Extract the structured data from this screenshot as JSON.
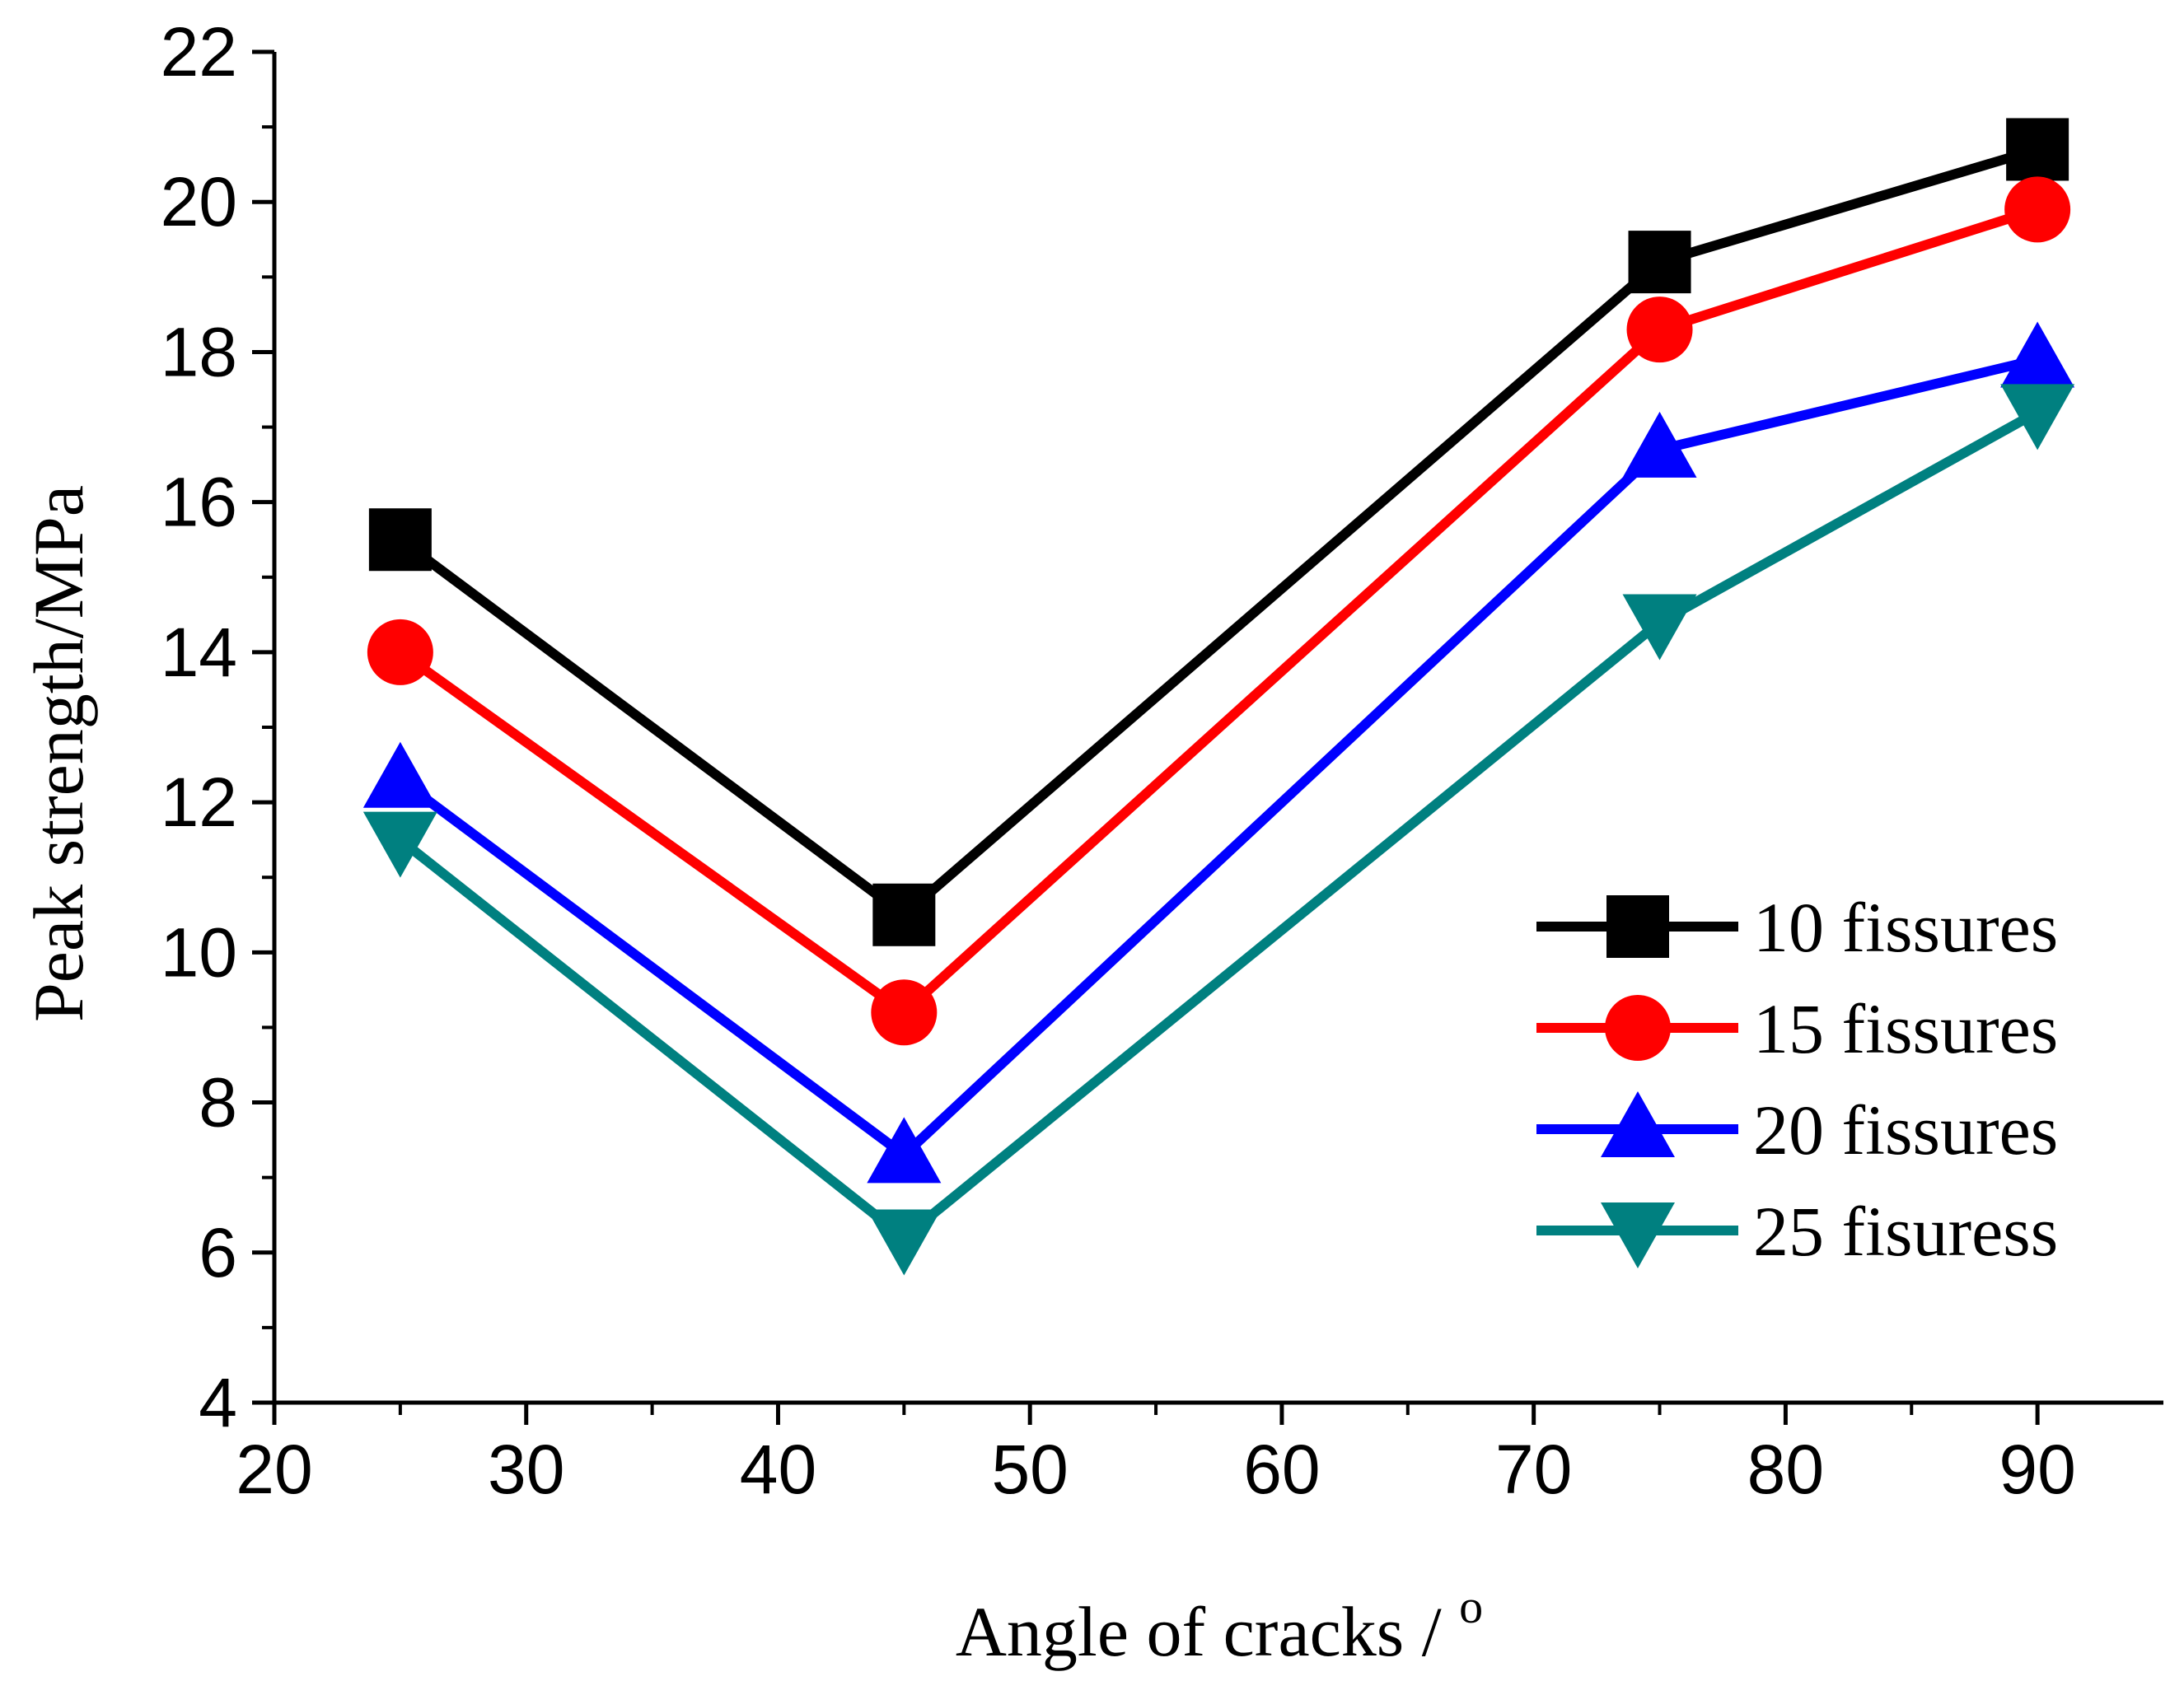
{
  "chart_data": {
    "type": "line",
    "title": "",
    "xlabel": "Angle of cracks / ",
    "xlabel_superscript": "o",
    "ylabel": "Peak strength/MPa",
    "xlim": [
      20,
      95
    ],
    "ylim": [
      4,
      22
    ],
    "x_ticks": [
      20,
      30,
      40,
      50,
      60,
      70,
      80,
      90
    ],
    "y_ticks": [
      4,
      6,
      8,
      10,
      12,
      14,
      16,
      18,
      20,
      22
    ],
    "x": [
      25,
      45,
      75,
      90
    ],
    "legend_position": "center-right",
    "series": [
      {
        "name": "10  fissures",
        "values": [
          15.5,
          10.5,
          19.2,
          20.7
        ],
        "color": "#000000",
        "marker": "square"
      },
      {
        "name": "15 fissures",
        "values": [
          14.0,
          9.2,
          18.3,
          19.9
        ],
        "color": "#ff0000",
        "marker": "circle"
      },
      {
        "name": "20 fissures",
        "values": [
          12.3,
          7.3,
          16.7,
          17.9
        ],
        "color": "#0000ff",
        "marker": "triangle-up"
      },
      {
        "name": "25 fisuress",
        "values": [
          11.5,
          6.2,
          14.4,
          17.2
        ],
        "color": "#008080",
        "marker": "triangle-down"
      }
    ]
  }
}
